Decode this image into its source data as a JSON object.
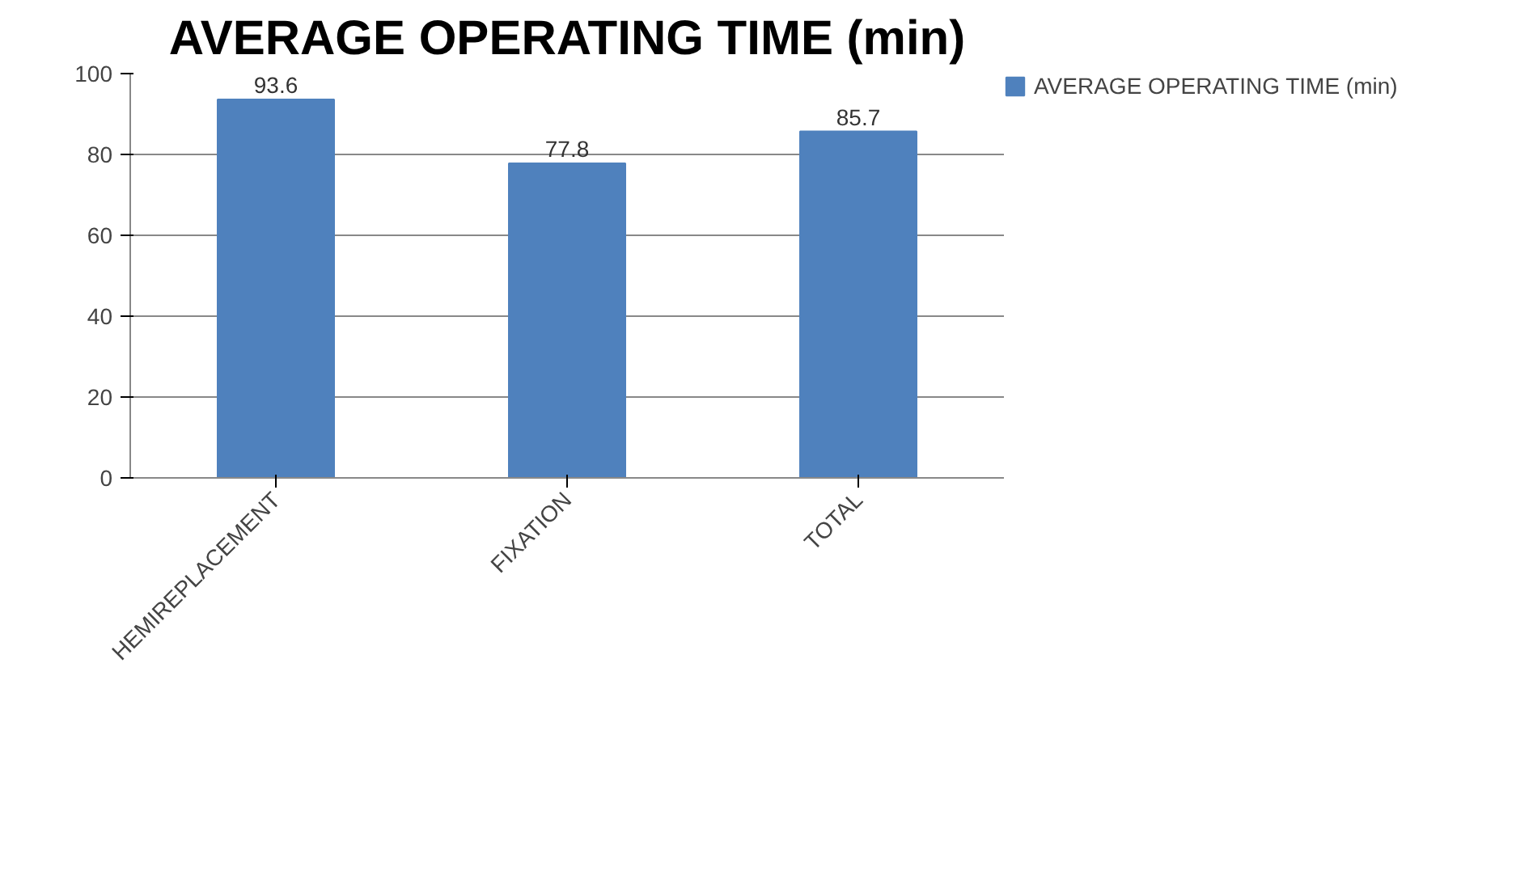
{
  "chart_data": {
    "type": "bar",
    "title": "AVERAGE OPERATING TIME (min)",
    "categories": [
      "HEMIREPLACEMENT",
      "FIXATION",
      "TOTAL"
    ],
    "series": [
      {
        "name": "AVERAGE OPERATING TIME (min)",
        "color": "#4f81bd",
        "values": [
          93.6,
          77.8,
          85.7
        ]
      }
    ],
    "ylim": [
      0,
      100
    ],
    "yticks": [
      0,
      20,
      40,
      60,
      80,
      100
    ],
    "grid": "y",
    "legend": "right",
    "data_labels": true
  }
}
